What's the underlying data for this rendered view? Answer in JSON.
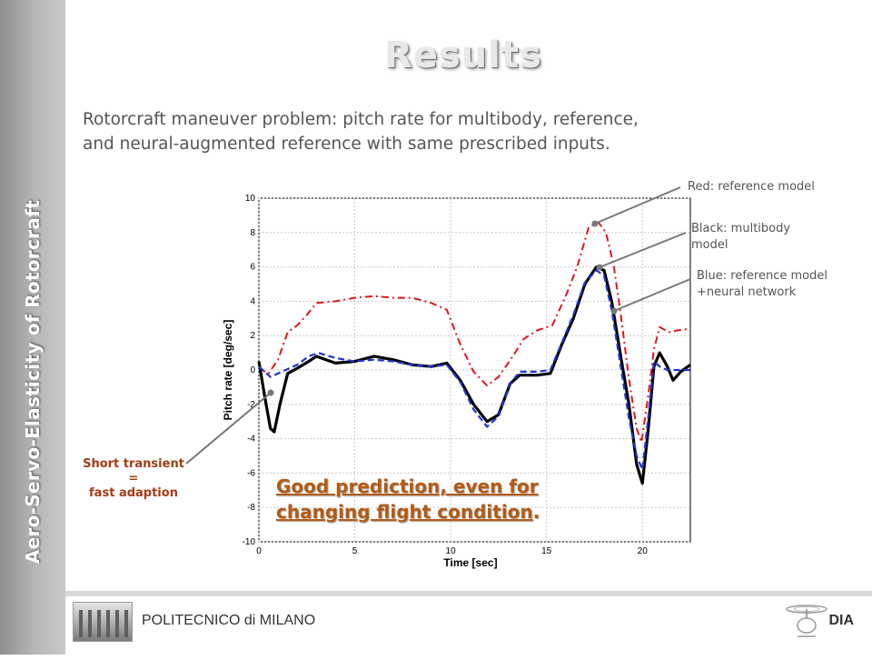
{
  "sidebar": {
    "title": "Aero-Servo-Elasticity of Rotorcraft"
  },
  "slide": {
    "title": "Results",
    "subtitle_line1": "Rotorcraft maneuver problem: pitch rate for multibody, reference,",
    "subtitle_line2": "and neural-augmented reference with same prescribed inputs."
  },
  "annotations": {
    "red_label": "Red: reference model",
    "black_label_line1": "Black: multibody",
    "black_label_line2": "model",
    "blue_label_line1": "Blue: reference model",
    "blue_label_line2": "+neural network",
    "transient_line1": "Short transient",
    "transient_line2": "=",
    "transient_line3": "fast adaption",
    "good_line1": "Good prediction, even for",
    "good_line2": "changing flight condition",
    "good_period": "."
  },
  "footer": {
    "left_text": "POLITECNICO di MILANO",
    "right_text": "DIA"
  },
  "colors": {
    "red": "#e0151d",
    "black": "#000000",
    "blue": "#1f33d6",
    "accent_orange": "#b45a14"
  },
  "chart_data": {
    "type": "line",
    "xlabel": "Time [sec]",
    "ylabel": "Pitch rate [deg/sec]",
    "xlim": [
      0,
      22.5
    ],
    "ylim": [
      -10,
      10
    ],
    "x_ticks": [
      0,
      5,
      10,
      15,
      20
    ],
    "y_ticks": [
      -10,
      -8,
      -6,
      -4,
      -2,
      0,
      2,
      4,
      6,
      8,
      10
    ],
    "grid": true,
    "series": [
      {
        "color": "red",
        "style": "dash-dot",
        "points": [
          [
            0,
            0.1
          ],
          [
            0.5,
            -0.2
          ],
          [
            1,
            0.6
          ],
          [
            1.5,
            2.2
          ],
          [
            2,
            2.6
          ],
          [
            2.5,
            3.2
          ],
          [
            3,
            3.9
          ],
          [
            4,
            4.0
          ],
          [
            5,
            4.2
          ],
          [
            6,
            4.3
          ],
          [
            7,
            4.2
          ],
          [
            8,
            4.2
          ],
          [
            9,
            3.9
          ],
          [
            9.8,
            3.5
          ],
          [
            10.5,
            1.5
          ],
          [
            11.2,
            -0.1
          ],
          [
            11.9,
            -0.9
          ],
          [
            12.5,
            -0.4
          ],
          [
            13.3,
            0.9
          ],
          [
            13.8,
            1.8
          ],
          [
            14.5,
            2.3
          ],
          [
            15.3,
            2.6
          ],
          [
            16,
            4.3
          ],
          [
            16.6,
            6.0
          ],
          [
            17.2,
            8.3
          ],
          [
            17.7,
            8.6
          ],
          [
            18.1,
            8.0
          ],
          [
            18.5,
            6.1
          ],
          [
            18.9,
            3.0
          ],
          [
            19.3,
            -0.5
          ],
          [
            19.7,
            -3.4
          ],
          [
            19.95,
            -4.2
          ],
          [
            20.3,
            -1.5
          ],
          [
            20.6,
            1.2
          ],
          [
            20.9,
            2.5
          ],
          [
            21.4,
            2.2
          ],
          [
            21.8,
            2.3
          ],
          [
            22.5,
            2.4
          ]
        ]
      },
      {
        "color": "black",
        "style": "solid",
        "points": [
          [
            0,
            0.5
          ],
          [
            0.3,
            -1.5
          ],
          [
            0.6,
            -3.4
          ],
          [
            0.8,
            -3.6
          ],
          [
            1.1,
            -2.0
          ],
          [
            1.5,
            -0.2
          ],
          [
            2,
            0.1
          ],
          [
            2.6,
            0.5
          ],
          [
            3,
            0.8
          ],
          [
            3.5,
            0.6
          ],
          [
            4,
            0.4
          ],
          [
            5,
            0.5
          ],
          [
            6,
            0.8
          ],
          [
            7,
            0.6
          ],
          [
            8,
            0.3
          ],
          [
            9,
            0.2
          ],
          [
            9.8,
            0.4
          ],
          [
            10.5,
            -0.6
          ],
          [
            11.2,
            -2.0
          ],
          [
            11.9,
            -3.0
          ],
          [
            12.5,
            -2.6
          ],
          [
            13.1,
            -0.8
          ],
          [
            13.6,
            -0.3
          ],
          [
            14.5,
            -0.3
          ],
          [
            15.2,
            -0.2
          ],
          [
            15.8,
            1.5
          ],
          [
            16.4,
            3.0
          ],
          [
            17,
            5.0
          ],
          [
            17.6,
            6.0
          ],
          [
            18,
            5.8
          ],
          [
            18.4,
            4.0
          ],
          [
            18.9,
            0.6
          ],
          [
            19.3,
            -2.0
          ],
          [
            19.7,
            -5.5
          ],
          [
            20,
            -6.6
          ],
          [
            20.3,
            -3.5
          ],
          [
            20.6,
            0.2
          ],
          [
            20.9,
            1.0
          ],
          [
            21.3,
            0.2
          ],
          [
            21.6,
            -0.6
          ],
          [
            22,
            -0.1
          ],
          [
            22.5,
            0.3
          ]
        ]
      },
      {
        "color": "blue",
        "style": "dashed",
        "points": [
          [
            0,
            0.2
          ],
          [
            0.6,
            -0.4
          ],
          [
            1.2,
            -0.1
          ],
          [
            2,
            0.3
          ],
          [
            2.6,
            0.8
          ],
          [
            3.1,
            1.0
          ],
          [
            4,
            0.7
          ],
          [
            5,
            0.5
          ],
          [
            6,
            0.6
          ],
          [
            7,
            0.5
          ],
          [
            8,
            0.3
          ],
          [
            9,
            0.2
          ],
          [
            9.8,
            0.3
          ],
          [
            10.5,
            -0.7
          ],
          [
            11.2,
            -2.3
          ],
          [
            11.9,
            -3.3
          ],
          [
            12.5,
            -2.7
          ],
          [
            13.1,
            -0.8
          ],
          [
            13.6,
            -0.1
          ],
          [
            14.5,
            -0.1
          ],
          [
            15.2,
            0.0
          ],
          [
            15.8,
            1.6
          ],
          [
            16.4,
            3.2
          ],
          [
            17,
            5.1
          ],
          [
            17.6,
            5.8
          ],
          [
            18,
            5.5
          ],
          [
            18.4,
            3.5
          ],
          [
            18.9,
            0.0
          ],
          [
            19.3,
            -2.8
          ],
          [
            19.7,
            -5.0
          ],
          [
            20,
            -5.8
          ],
          [
            20.3,
            -2.8
          ],
          [
            20.6,
            0.5
          ],
          [
            20.9,
            0.2
          ],
          [
            21.3,
            0.0
          ],
          [
            21.7,
            0.0
          ],
          [
            22.5,
            0.0
          ]
        ]
      }
    ]
  }
}
